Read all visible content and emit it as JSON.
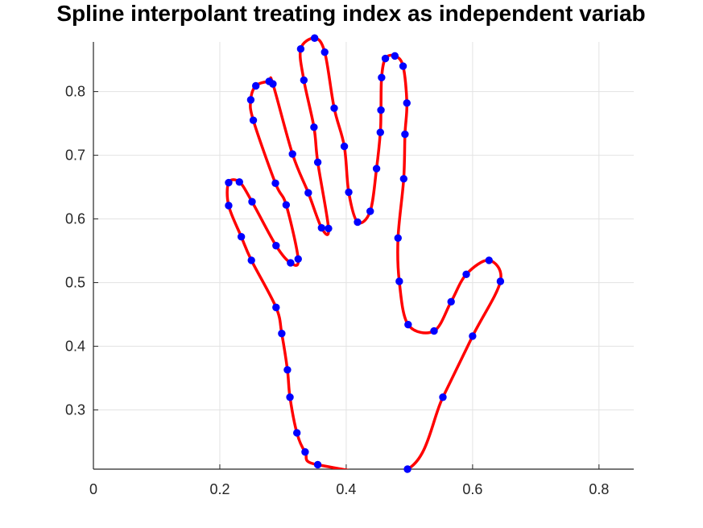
{
  "chart_data": {
    "type": "line",
    "title": "Spline interpolant treating index as independent variab",
    "xlabel": "",
    "ylabel": "",
    "xlim": [
      0,
      0.855
    ],
    "ylim": [
      0.207,
      0.878
    ],
    "xticks": [
      0,
      0.2,
      0.4,
      0.6,
      0.8
    ],
    "yticks": [
      0.3,
      0.4,
      0.5,
      0.6,
      0.7,
      0.8
    ],
    "xtick_labels": [
      "0",
      "0.2",
      "0.4",
      "0.6",
      "0.8"
    ],
    "ytick_labels": [
      "0.3",
      "0.4",
      "0.5",
      "0.6",
      "0.7",
      "0.8"
    ],
    "grid": true,
    "series": [
      {
        "type": "spline",
        "color": "#ff0000",
        "points": [
          [
            0.497,
            0.207
          ],
          [
            0.355,
            0.214
          ],
          [
            0.335,
            0.234
          ],
          [
            0.322,
            0.264
          ],
          [
            0.311,
            0.32
          ],
          [
            0.307,
            0.363
          ],
          [
            0.298,
            0.42
          ],
          [
            0.289,
            0.461
          ],
          [
            0.25,
            0.535
          ],
          [
            0.234,
            0.572
          ],
          [
            0.214,
            0.621
          ],
          [
            0.214,
            0.657
          ],
          [
            0.231,
            0.658
          ],
          [
            0.251,
            0.627
          ],
          [
            0.289,
            0.558
          ],
          [
            0.312,
            0.531
          ],
          [
            0.324,
            0.537
          ],
          [
            0.305,
            0.622
          ],
          [
            0.288,
            0.656
          ],
          [
            0.253,
            0.755
          ],
          [
            0.249,
            0.787
          ],
          [
            0.257,
            0.809
          ],
          [
            0.278,
            0.816
          ],
          [
            0.284,
            0.812
          ],
          [
            0.315,
            0.702
          ],
          [
            0.34,
            0.641
          ],
          [
            0.361,
            0.586
          ],
          [
            0.372,
            0.585
          ],
          [
            0.355,
            0.689
          ],
          [
            0.349,
            0.744
          ],
          [
            0.333,
            0.818
          ],
          [
            0.328,
            0.867
          ],
          [
            0.35,
            0.884
          ],
          [
            0.366,
            0.862
          ],
          [
            0.381,
            0.774
          ],
          [
            0.397,
            0.714
          ],
          [
            0.404,
            0.642
          ],
          [
            0.418,
            0.595
          ],
          [
            0.438,
            0.612
          ],
          [
            0.448,
            0.679
          ],
          [
            0.454,
            0.736
          ],
          [
            0.455,
            0.771
          ],
          [
            0.456,
            0.822
          ],
          [
            0.462,
            0.852
          ],
          [
            0.477,
            0.856
          ],
          [
            0.49,
            0.84
          ],
          [
            0.496,
            0.782
          ],
          [
            0.493,
            0.733
          ],
          [
            0.491,
            0.663
          ],
          [
            0.482,
            0.57
          ],
          [
            0.484,
            0.502
          ],
          [
            0.498,
            0.434
          ],
          [
            0.539,
            0.424
          ],
          [
            0.566,
            0.47
          ],
          [
            0.59,
            0.513
          ],
          [
            0.626,
            0.535
          ],
          [
            0.644,
            0.502
          ],
          [
            0.6,
            0.416
          ],
          [
            0.553,
            0.32
          ],
          [
            0.497,
            0.207
          ]
        ]
      },
      {
        "type": "scatter",
        "color": "#0000ff",
        "points": [
          [
            0.497,
            0.207
          ],
          [
            0.355,
            0.214
          ],
          [
            0.335,
            0.234
          ],
          [
            0.322,
            0.264
          ],
          [
            0.311,
            0.32
          ],
          [
            0.307,
            0.363
          ],
          [
            0.298,
            0.42
          ],
          [
            0.289,
            0.461
          ],
          [
            0.25,
            0.535
          ],
          [
            0.234,
            0.572
          ],
          [
            0.214,
            0.621
          ],
          [
            0.214,
            0.657
          ],
          [
            0.231,
            0.658
          ],
          [
            0.251,
            0.627
          ],
          [
            0.289,
            0.558
          ],
          [
            0.312,
            0.531
          ],
          [
            0.324,
            0.537
          ],
          [
            0.305,
            0.622
          ],
          [
            0.288,
            0.656
          ],
          [
            0.253,
            0.755
          ],
          [
            0.249,
            0.787
          ],
          [
            0.257,
            0.809
          ],
          [
            0.278,
            0.816
          ],
          [
            0.284,
            0.812
          ],
          [
            0.315,
            0.702
          ],
          [
            0.34,
            0.641
          ],
          [
            0.361,
            0.586
          ],
          [
            0.372,
            0.585
          ],
          [
            0.355,
            0.689
          ],
          [
            0.349,
            0.744
          ],
          [
            0.333,
            0.818
          ],
          [
            0.328,
            0.867
          ],
          [
            0.35,
            0.884
          ],
          [
            0.366,
            0.862
          ],
          [
            0.381,
            0.774
          ],
          [
            0.397,
            0.714
          ],
          [
            0.404,
            0.642
          ],
          [
            0.418,
            0.595
          ],
          [
            0.438,
            0.612
          ],
          [
            0.448,
            0.679
          ],
          [
            0.454,
            0.736
          ],
          [
            0.455,
            0.771
          ],
          [
            0.456,
            0.822
          ],
          [
            0.462,
            0.852
          ],
          [
            0.477,
            0.856
          ],
          [
            0.49,
            0.84
          ],
          [
            0.496,
            0.782
          ],
          [
            0.493,
            0.733
          ],
          [
            0.491,
            0.663
          ],
          [
            0.482,
            0.57
          ],
          [
            0.484,
            0.502
          ],
          [
            0.498,
            0.434
          ],
          [
            0.539,
            0.424
          ],
          [
            0.566,
            0.47
          ],
          [
            0.59,
            0.513
          ],
          [
            0.626,
            0.535
          ],
          [
            0.644,
            0.502
          ],
          [
            0.6,
            0.416
          ],
          [
            0.553,
            0.32
          ]
        ]
      }
    ]
  }
}
